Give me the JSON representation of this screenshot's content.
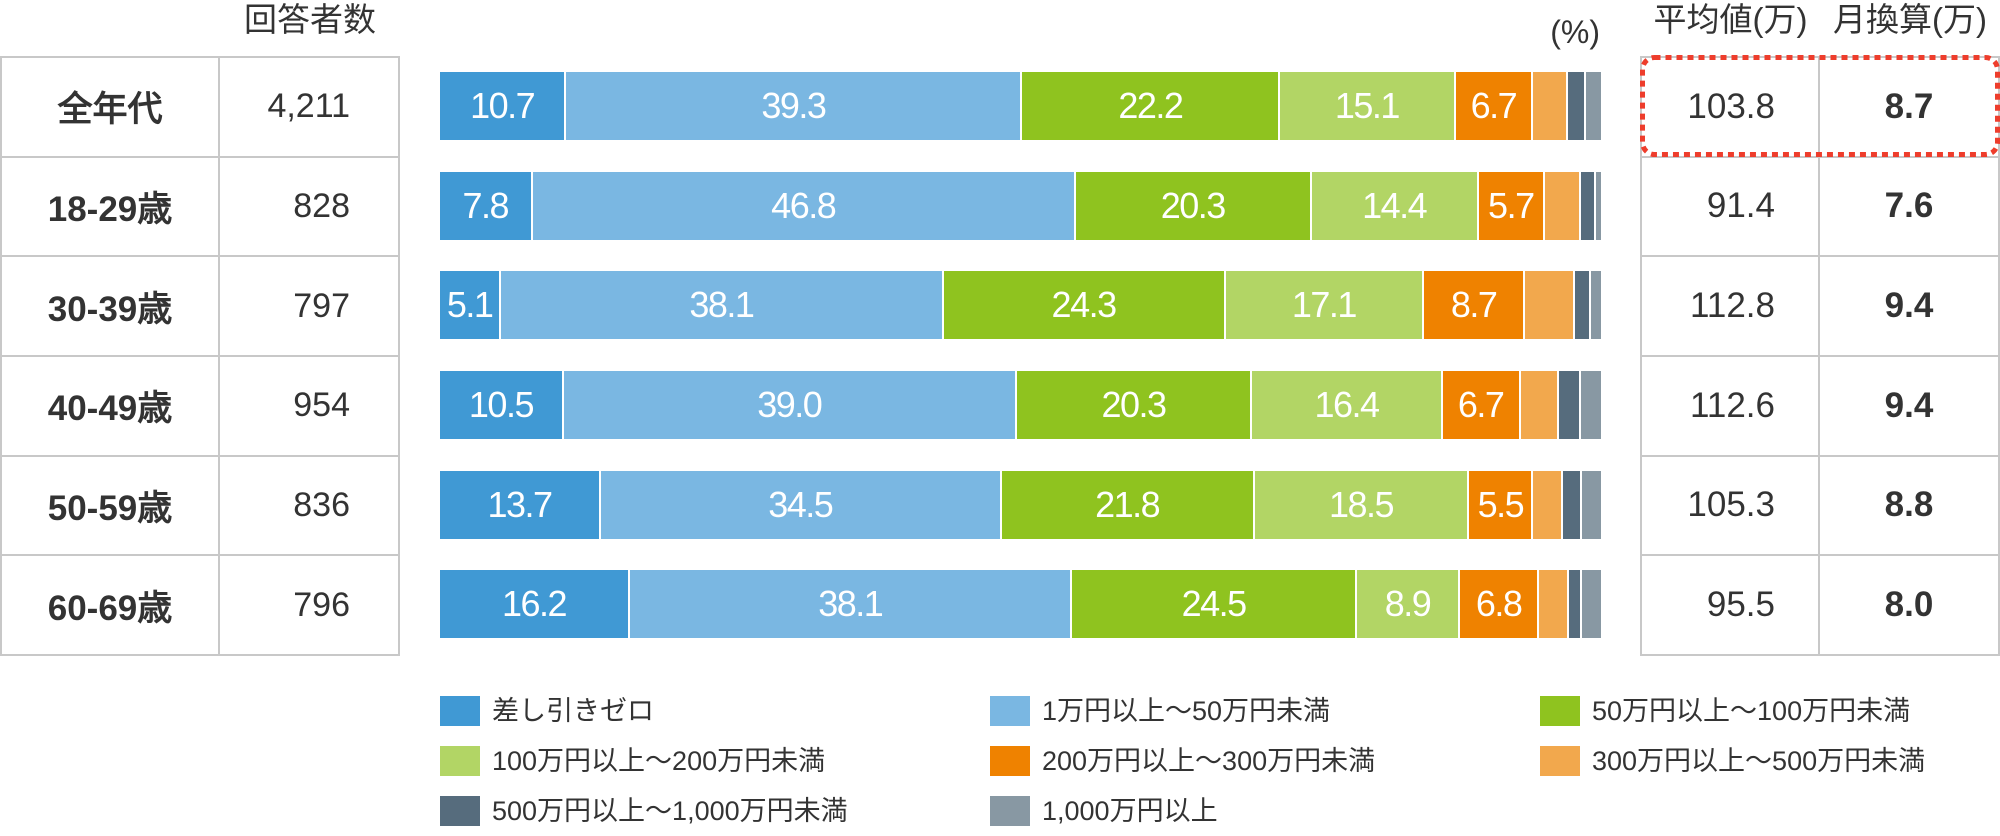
{
  "header": {
    "respondents_label": "回答者数",
    "percent_unit": "(%)",
    "average_label": "平均値(万)",
    "monthly_label": "月換算(万)"
  },
  "rows": [
    {
      "age": "全年代",
      "respondents": "4,211",
      "average": "103.8",
      "monthly": "8.7"
    },
    {
      "age": "18-29歳",
      "respondents": "828",
      "average": "91.4",
      "monthly": "7.6"
    },
    {
      "age": "30-39歳",
      "respondents": "797",
      "average": "112.8",
      "monthly": "9.4"
    },
    {
      "age": "40-49歳",
      "respondents": "954",
      "average": "112.6",
      "monthly": "9.4"
    },
    {
      "age": "50-59歳",
      "respondents": "836",
      "average": "105.3",
      "monthly": "8.8"
    },
    {
      "age": "60-69歳",
      "respondents": "796",
      "average": "95.5",
      "monthly": "8.0"
    }
  ],
  "highlight": {
    "color": "#ee3d2c",
    "row": "全年代"
  },
  "legend": [
    {
      "label": "差し引きゼロ",
      "color": "#4099d4"
    },
    {
      "label": "1万円以上～50万円未満",
      "color": "#7ab7e2"
    },
    {
      "label": "50万円以上～100万円未満",
      "color": "#8fc31f"
    },
    {
      "label": "100万円以上～200万円未満",
      "color": "#b2d565"
    },
    {
      "label": "200万円以上～300万円未満",
      "color": "#ef8200"
    },
    {
      "label": "300万円以上～500万円未満",
      "color": "#f2a84d"
    },
    {
      "label": "500万円以上～1,000万円未満",
      "color": "#566c7d"
    },
    {
      "label": "1,000万円以上",
      "color": "#8898a3"
    }
  ],
  "chart_data": {
    "type": "bar",
    "orientation": "horizontal",
    "stacked": true,
    "normalized": true,
    "unit": "%",
    "title": "",
    "xlabel": "",
    "ylabel": "",
    "xlim": [
      0,
      100
    ],
    "grid": false,
    "legend_position": "bottom",
    "categories": [
      "全年代",
      "18-29歳",
      "30-39歳",
      "40-49歳",
      "50-59歳",
      "60-69歳"
    ],
    "series": [
      {
        "name": "差し引きゼロ",
        "color": "#4099d4",
        "values": [
          10.7,
          7.8,
          5.1,
          10.5,
          13.7,
          16.2
        ],
        "labels": [
          "10.7",
          "7.8",
          "5.1",
          "10.5",
          "13.7",
          "16.2"
        ]
      },
      {
        "name": "1万円以上～50万円未満",
        "color": "#7ab7e2",
        "values": [
          39.3,
          46.8,
          38.1,
          39.0,
          34.5,
          38.1
        ],
        "labels": [
          "39.3",
          "46.8",
          "38.1",
          "39.0",
          "34.5",
          "38.1"
        ]
      },
      {
        "name": "50万円以上～100万円未満",
        "color": "#8fc31f",
        "values": [
          22.2,
          20.3,
          24.3,
          20.3,
          21.8,
          24.5
        ],
        "labels": [
          "22.2",
          "20.3",
          "24.3",
          "20.3",
          "21.8",
          "24.5"
        ]
      },
      {
        "name": "100万円以上～200万円未満",
        "color": "#b2d565",
        "values": [
          15.1,
          14.4,
          17.1,
          16.4,
          18.5,
          8.9
        ],
        "labels": [
          "15.1",
          "14.4",
          "17.1",
          "16.4",
          "18.5",
          "8.9"
        ]
      },
      {
        "name": "200万円以上～300万円未満",
        "color": "#ef8200",
        "values": [
          6.7,
          5.7,
          8.7,
          6.7,
          5.5,
          6.8
        ],
        "labels": [
          "6.7",
          "5.7",
          "8.7",
          "6.7",
          "5.5",
          "6.8"
        ]
      },
      {
        "name": "300万円以上～500万円未満",
        "color": "#f2a84d",
        "values": [
          3.0,
          3.1,
          4.3,
          3.3,
          2.6,
          2.6
        ]
      },
      {
        "name": "500万円以上～1,000万円未満",
        "color": "#566c7d",
        "values": [
          1.5,
          1.3,
          1.4,
          1.9,
          1.6,
          1.1
        ]
      },
      {
        "name": "1,000万円以上",
        "color": "#8898a3",
        "values": [
          1.5,
          0.6,
          1.0,
          1.9,
          1.8,
          1.8
        ]
      }
    ],
    "side_table": {
      "respondents": [
        "4,211",
        "828",
        "797",
        "954",
        "836",
        "796"
      ],
      "average_man_yen": [
        103.8,
        91.4,
        112.8,
        112.6,
        105.3,
        95.5
      ],
      "monthly_man_yen": [
        8.7,
        7.6,
        9.4,
        9.4,
        8.8,
        8.0
      ]
    }
  }
}
